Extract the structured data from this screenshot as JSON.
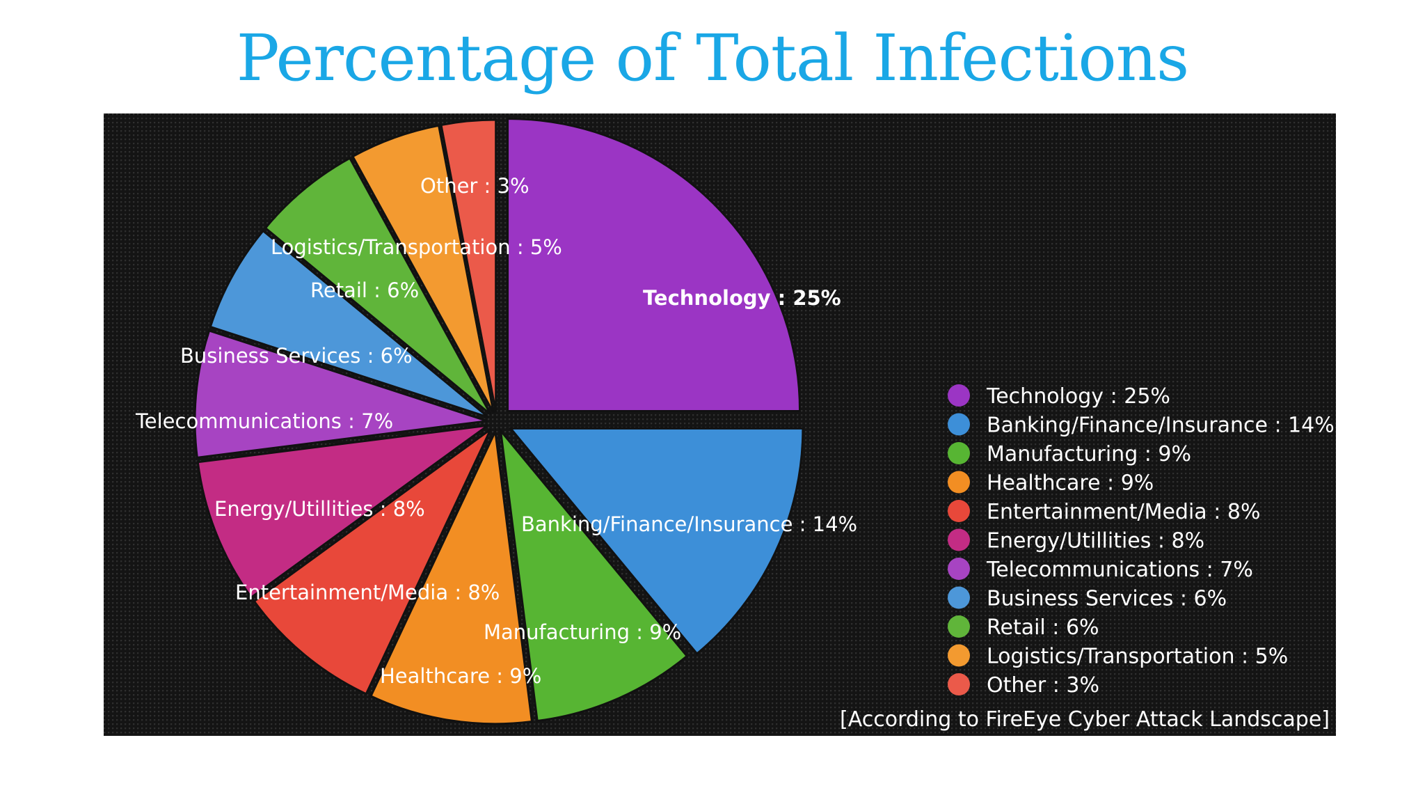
{
  "title": "Percentage of Total Infections",
  "chart_data": {
    "type": "pie",
    "categories": [
      "Technology",
      "Banking/Finance/Insurance",
      "Manufacturing",
      "Healthcare",
      "Entertainment/Media",
      "Energy/Utillities",
      "Telecommunications",
      "Business Services",
      "Retail",
      "Logistics/Transportation",
      "Other"
    ],
    "values": [
      25,
      14,
      9,
      9,
      8,
      8,
      7,
      6,
      6,
      5,
      3
    ],
    "slice_labels": [
      "Technology : 25%",
      "Banking/Finance/Insurance : 14%",
      "Manufacturing : 9%",
      "Healthcare : 9%",
      "Entertainment/Media : 8%",
      "Energy/Utillities : 8%",
      "Telecommunications : 7%",
      "Business Services : 6%",
      "Retail : 6%",
      "Logistics/Transportation : 5%",
      "Other : 3%"
    ],
    "legend_labels": [
      "Technology : 25%",
      "Banking/Finance/Insurance : 14%",
      "Manufacturing : 9%",
      "Healthcare : 9%",
      "Entertainment/Media : 8%",
      "Energy/Utillities : 8%",
      "Telecommunications : 7%",
      "Business Services : 6%",
      "Retail : 6%",
      "Logistics/Transportation : 5%",
      "Other : 3%"
    ],
    "colors": [
      "#9b35c4",
      "#3d8fd8",
      "#57b533",
      "#f28e23",
      "#e8483a",
      "#c32c84",
      "#a744c2",
      "#4d97d9",
      "#60b53a",
      "#f39a30",
      "#eb5a4a"
    ],
    "legend_position": "right",
    "note": "[According to FireEye Cyber Attack Landscape]"
  }
}
